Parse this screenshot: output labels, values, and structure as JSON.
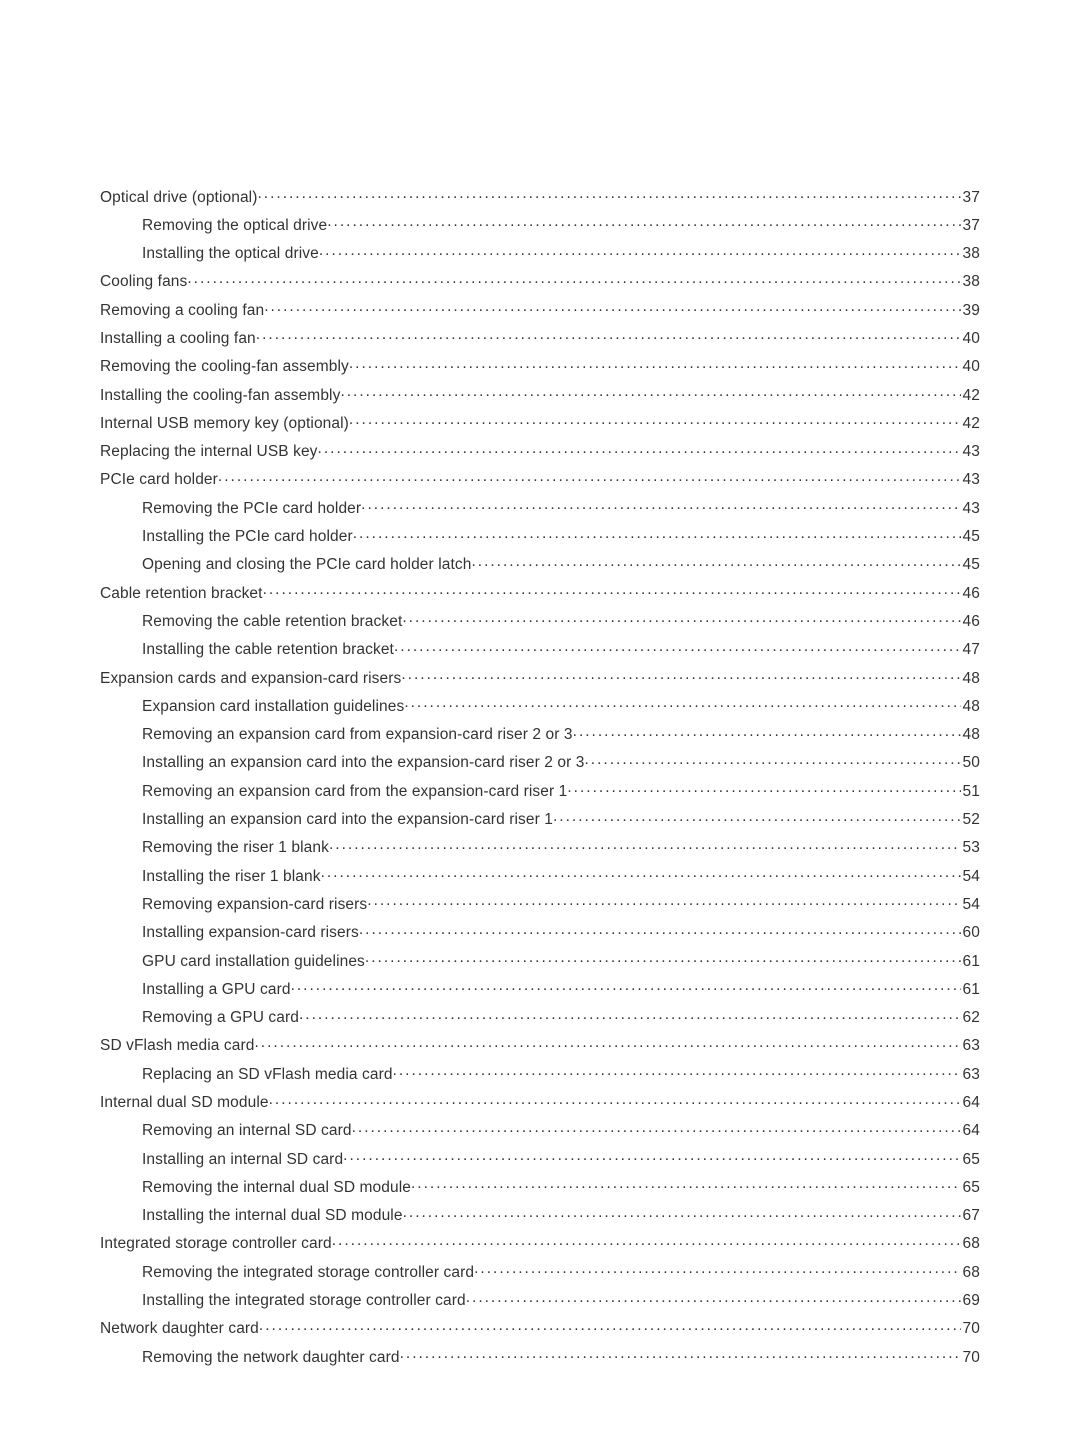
{
  "toc": [
    {
      "indent": 0,
      "text": "Optical drive (optional)",
      "page": "37"
    },
    {
      "indent": 1,
      "text": "Removing the optical drive",
      "page": "37"
    },
    {
      "indent": 1,
      "text": "Installing the optical drive",
      "page": "38"
    },
    {
      "indent": 0,
      "text": "Cooling fans",
      "page": "38"
    },
    {
      "indent": 0,
      "text": "Removing a cooling fan",
      "page": "39"
    },
    {
      "indent": 0,
      "text": "Installing a cooling fan",
      "page": "40"
    },
    {
      "indent": 0,
      "text": "Removing the cooling-fan assembly",
      "page": "40"
    },
    {
      "indent": 0,
      "text": "Installing the cooling-fan assembly",
      "page": "42"
    },
    {
      "indent": 0,
      "text": "Internal USB memory key (optional)",
      "page": "42"
    },
    {
      "indent": 0,
      "text": "Replacing the internal USB key",
      "page": "43"
    },
    {
      "indent": 0,
      "text": "PCIe card holder",
      "page": "43"
    },
    {
      "indent": 1,
      "text": "Removing the PCIe card holder",
      "page": "43"
    },
    {
      "indent": 1,
      "text": "Installing the PCIe card holder",
      "page": "45"
    },
    {
      "indent": 1,
      "text": "Opening and closing the PCIe card holder latch",
      "page": "45"
    },
    {
      "indent": 0,
      "text": "Cable retention bracket",
      "page": "46"
    },
    {
      "indent": 1,
      "text": "Removing the cable retention bracket",
      "page": "46"
    },
    {
      "indent": 1,
      "text": "Installing the cable retention bracket",
      "page": "47"
    },
    {
      "indent": 0,
      "text": "Expansion cards and expansion-card risers",
      "page": "48"
    },
    {
      "indent": 1,
      "text": "Expansion card installation guidelines",
      "page": "48"
    },
    {
      "indent": 1,
      "text": "Removing an expansion card from expansion-card riser 2 or 3",
      "page": "48"
    },
    {
      "indent": 1,
      "text": "Installing an expansion card into the expansion-card riser 2 or 3",
      "page": "50"
    },
    {
      "indent": 1,
      "text": "Removing an expansion card from the expansion-card riser 1",
      "page": "51"
    },
    {
      "indent": 1,
      "text": "Installing an expansion card into the expansion-card riser 1",
      "page": "52"
    },
    {
      "indent": 1,
      "text": "Removing the riser 1 blank",
      "page": "53"
    },
    {
      "indent": 1,
      "text": "Installing the riser 1 blank",
      "page": "54"
    },
    {
      "indent": 1,
      "text": "Removing expansion-card risers",
      "page": "54"
    },
    {
      "indent": 1,
      "text": "Installing expansion-card risers",
      "page": "60"
    },
    {
      "indent": 1,
      "text": "GPU card installation guidelines",
      "page": "61"
    },
    {
      "indent": 1,
      "text": "Installing a GPU card",
      "page": "61"
    },
    {
      "indent": 1,
      "text": "Removing a GPU card",
      "page": "62"
    },
    {
      "indent": 0,
      "text": "SD vFlash media card",
      "page": "63"
    },
    {
      "indent": 1,
      "text": "Replacing an SD vFlash media card",
      "page": "63"
    },
    {
      "indent": 0,
      "text": "Internal dual SD module",
      "page": "64"
    },
    {
      "indent": 1,
      "text": "Removing an internal SD card",
      "page": "64"
    },
    {
      "indent": 1,
      "text": "Installing an internal SD card",
      "page": "65"
    },
    {
      "indent": 1,
      "text": "Removing the internal dual SD module ",
      "page": "65"
    },
    {
      "indent": 1,
      "text": "Installing the internal dual SD module ",
      "page": "67"
    },
    {
      "indent": 0,
      "text": "Integrated storage controller card",
      "page": "68"
    },
    {
      "indent": 1,
      "text": "Removing the integrated storage controller card",
      "page": "68"
    },
    {
      "indent": 1,
      "text": "Installing the integrated storage controller card",
      "page": "69"
    },
    {
      "indent": 0,
      "text": "Network daughter card",
      "page": "70"
    },
    {
      "indent": 1,
      "text": "Removing the network daughter card ",
      "page": "70"
    }
  ]
}
